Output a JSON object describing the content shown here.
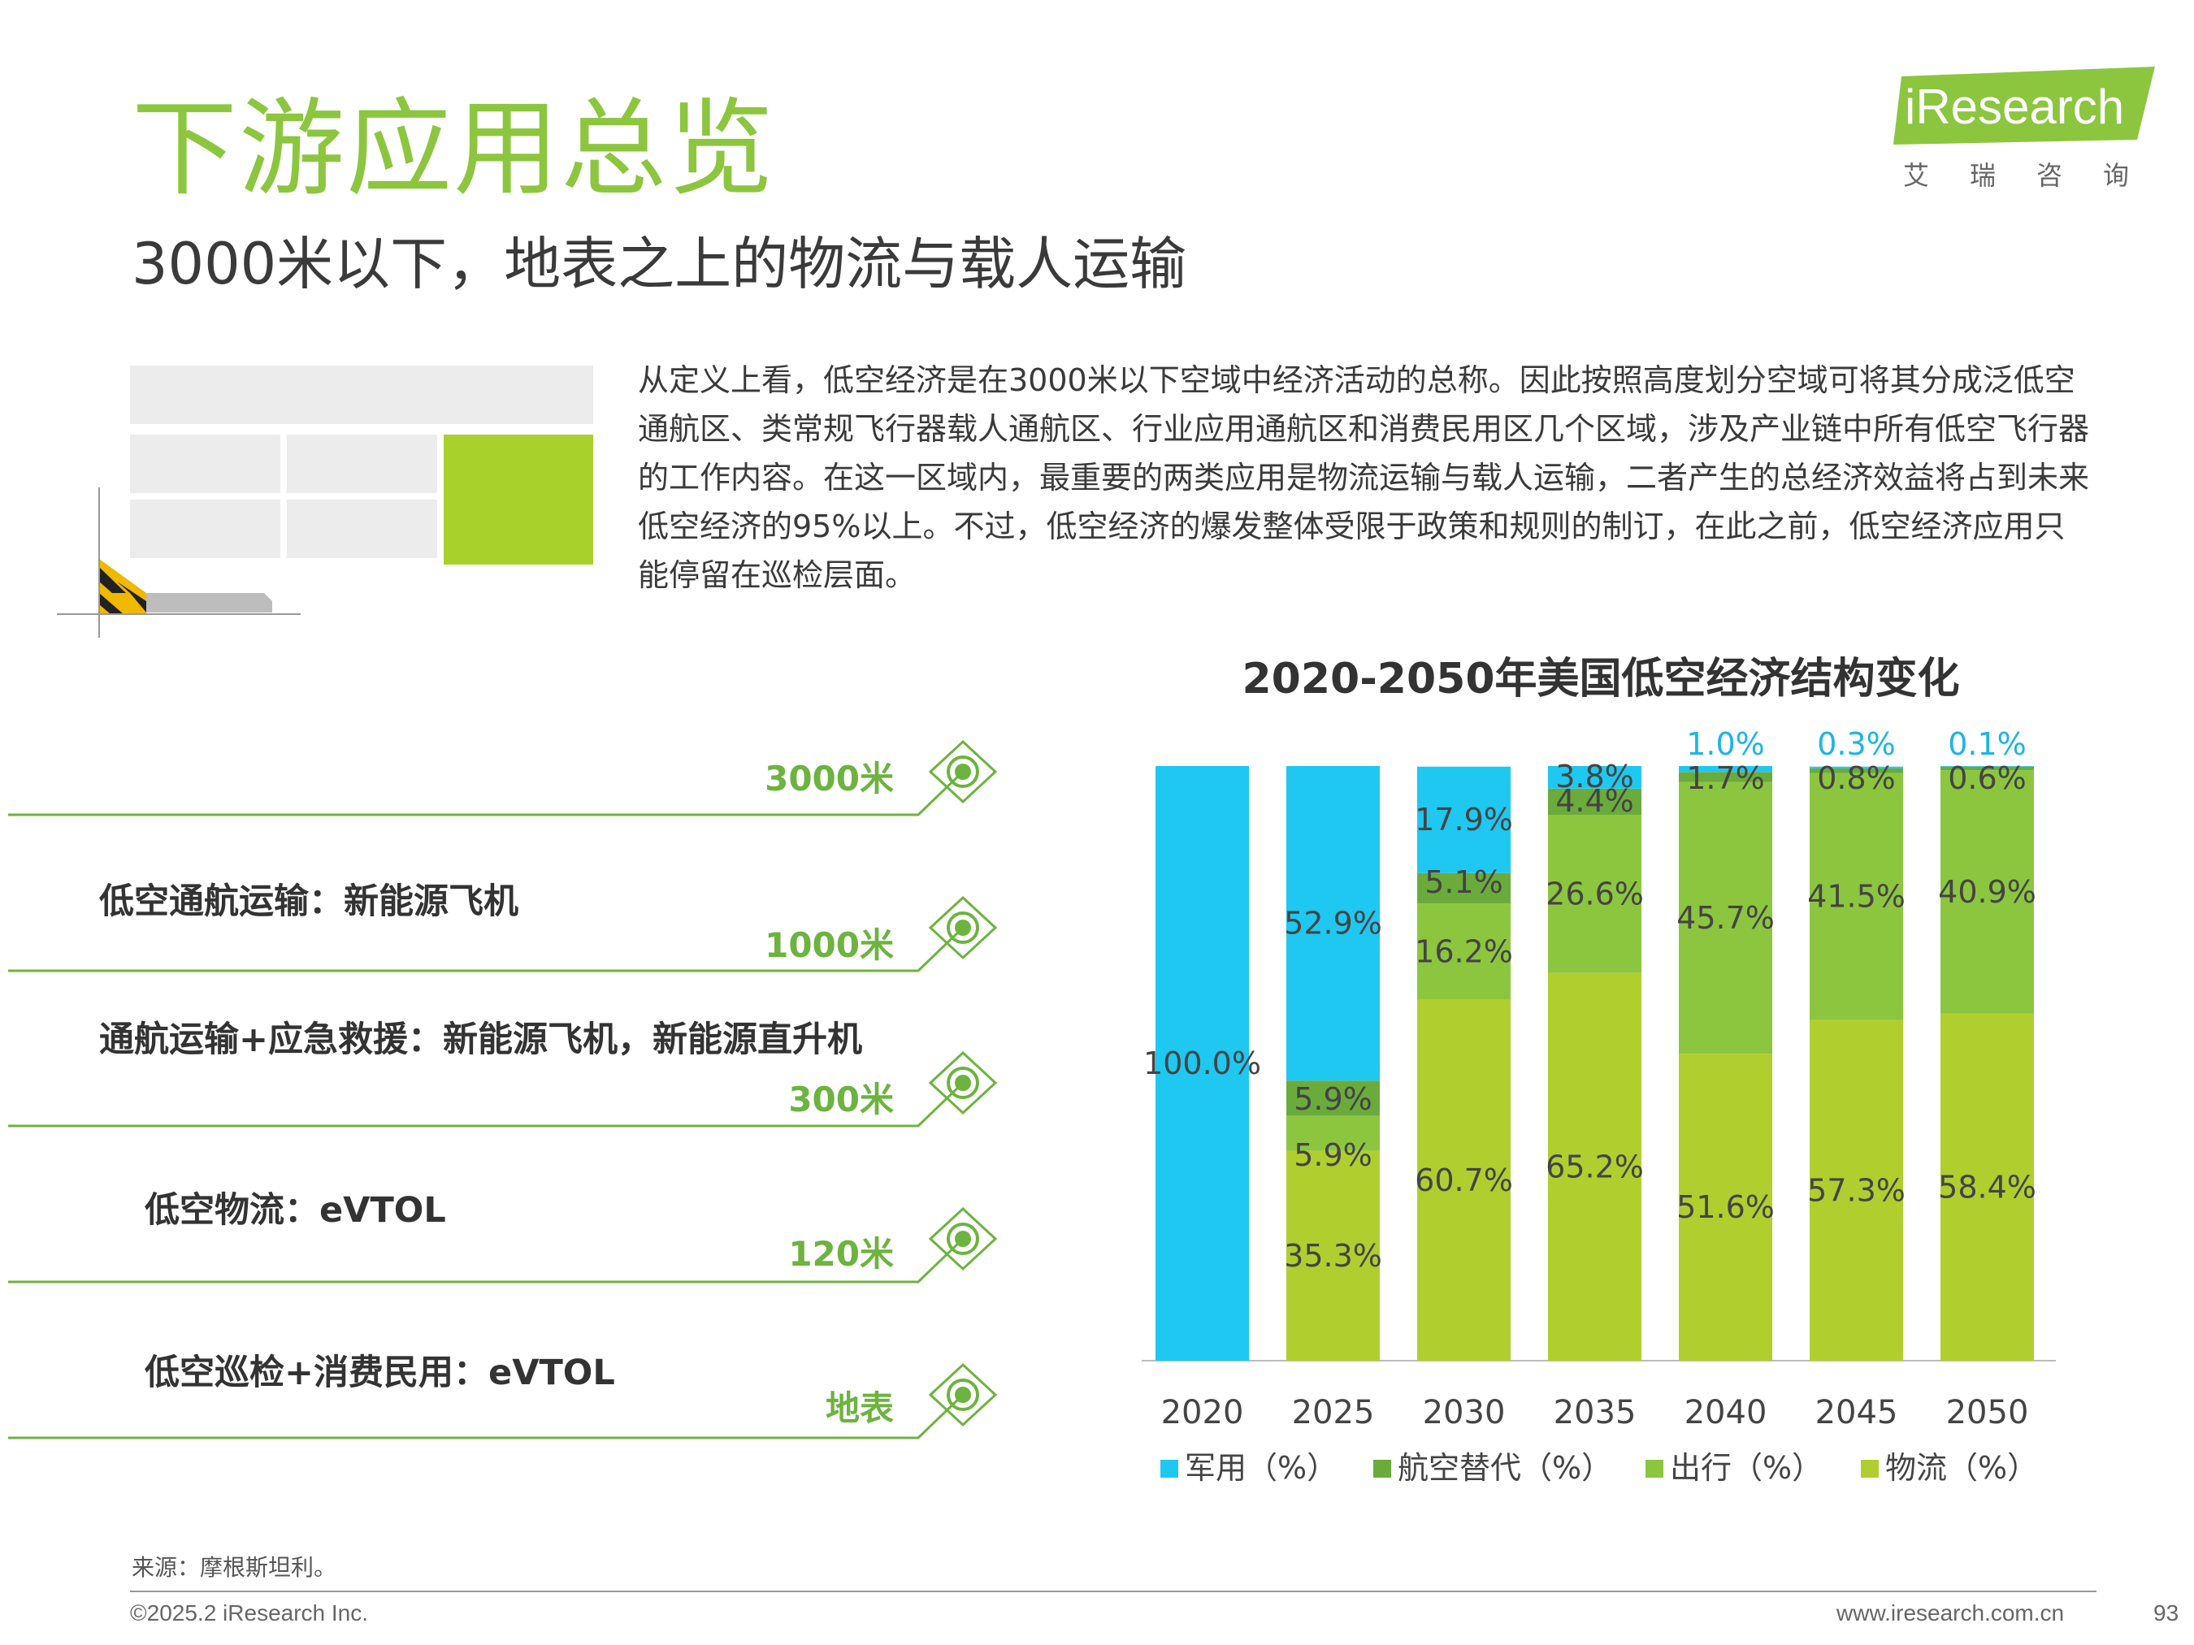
{
  "header": {
    "title": "下游应用总览",
    "subtitle": "3000米以下，地表之上的物流与载人运输"
  },
  "logo": {
    "brand": "iResearch",
    "chinese": "艾瑞咨询"
  },
  "intro_text": "从定义上看，低空经济是在3000米以下空域中经济活动的总称。因此按照高度划分空域可将其分成泛低空通航区、类常规飞行器载人通航区、行业应用通航区和消费民用区几个区域，涉及产业链中所有低空飞行器的工作内容。在这一区域内，最重要的两类应用是物流运输与载人运输，二者产生的总经济效益将占到未来低空经济的95%以上。不过，低空经济的爆发整体受限于政策和规则的制订，在此之前，低空经济应用只能停留在巡检层面。",
  "altitude": {
    "levels": [
      "3000米",
      "1000米",
      "300米",
      "120米",
      "地表"
    ],
    "uses": [
      "低空通航运输：新能源飞机",
      "通航运输+应急救援：新能源飞机，新能源直升机",
      "低空物流：eVTOL",
      "低空巡检+消费民用：eVTOL"
    ]
  },
  "colors": {
    "brand_green": "#8cc63f",
    "military": "#1ec8f0",
    "aviation_replacement": "#6aab3c",
    "travel": "#8cc63f",
    "logistics": "#b0cf2f",
    "alt_line": "#6db33f"
  },
  "chart_data": {
    "type": "bar",
    "stacked": true,
    "title": "2020-2050年美国低空经济结构变化",
    "categories": [
      "2020",
      "2025",
      "2030",
      "2035",
      "2040",
      "2045",
      "2050"
    ],
    "series": [
      {
        "name": "物流（%）",
        "color": "#b0cf2f",
        "values": [
          0,
          35.3,
          60.7,
          65.2,
          51.6,
          57.3,
          58.4
        ],
        "labels": [
          "",
          "35.3%",
          "60.7%",
          "65.2%",
          "51.6%",
          "57.3%",
          "58.4%"
        ]
      },
      {
        "name": "出行（%）",
        "color": "#8cc63f",
        "values": [
          0,
          5.9,
          16.2,
          26.6,
          45.7,
          41.5,
          40.9
        ],
        "labels": [
          "",
          "5.9%",
          "16.2%",
          "26.6%",
          "45.7%",
          "41.5%",
          "40.9%"
        ]
      },
      {
        "name": "航空替代（%）",
        "color": "#6aab3c",
        "values": [
          0,
          5.9,
          5.1,
          4.4,
          1.7,
          0.8,
          0.6
        ],
        "labels": [
          "",
          "5.9%",
          "5.1%",
          "4.4%",
          "1.7%",
          "0.8%",
          "0.6%"
        ]
      },
      {
        "name": "军用（%）",
        "color": "#1ec8f0",
        "values": [
          100.0,
          52.9,
          17.9,
          3.8,
          1.0,
          0.3,
          0.1
        ],
        "labels": [
          "100.0%",
          "52.9%",
          "17.9%",
          "3.8%",
          "1.0%",
          "0.3%",
          "0.1%"
        ]
      }
    ],
    "legend_order": [
      "军用（%）",
      "航空替代（%）",
      "出行（%）",
      "物流（%）"
    ],
    "ylim": [
      0,
      100
    ],
    "legend_position": "bottom"
  },
  "footer": {
    "source": "来源：摩根斯坦利。",
    "copyright": "©2025.2 iResearch Inc.",
    "website": "www.iresearch.com.cn",
    "page": "93"
  }
}
